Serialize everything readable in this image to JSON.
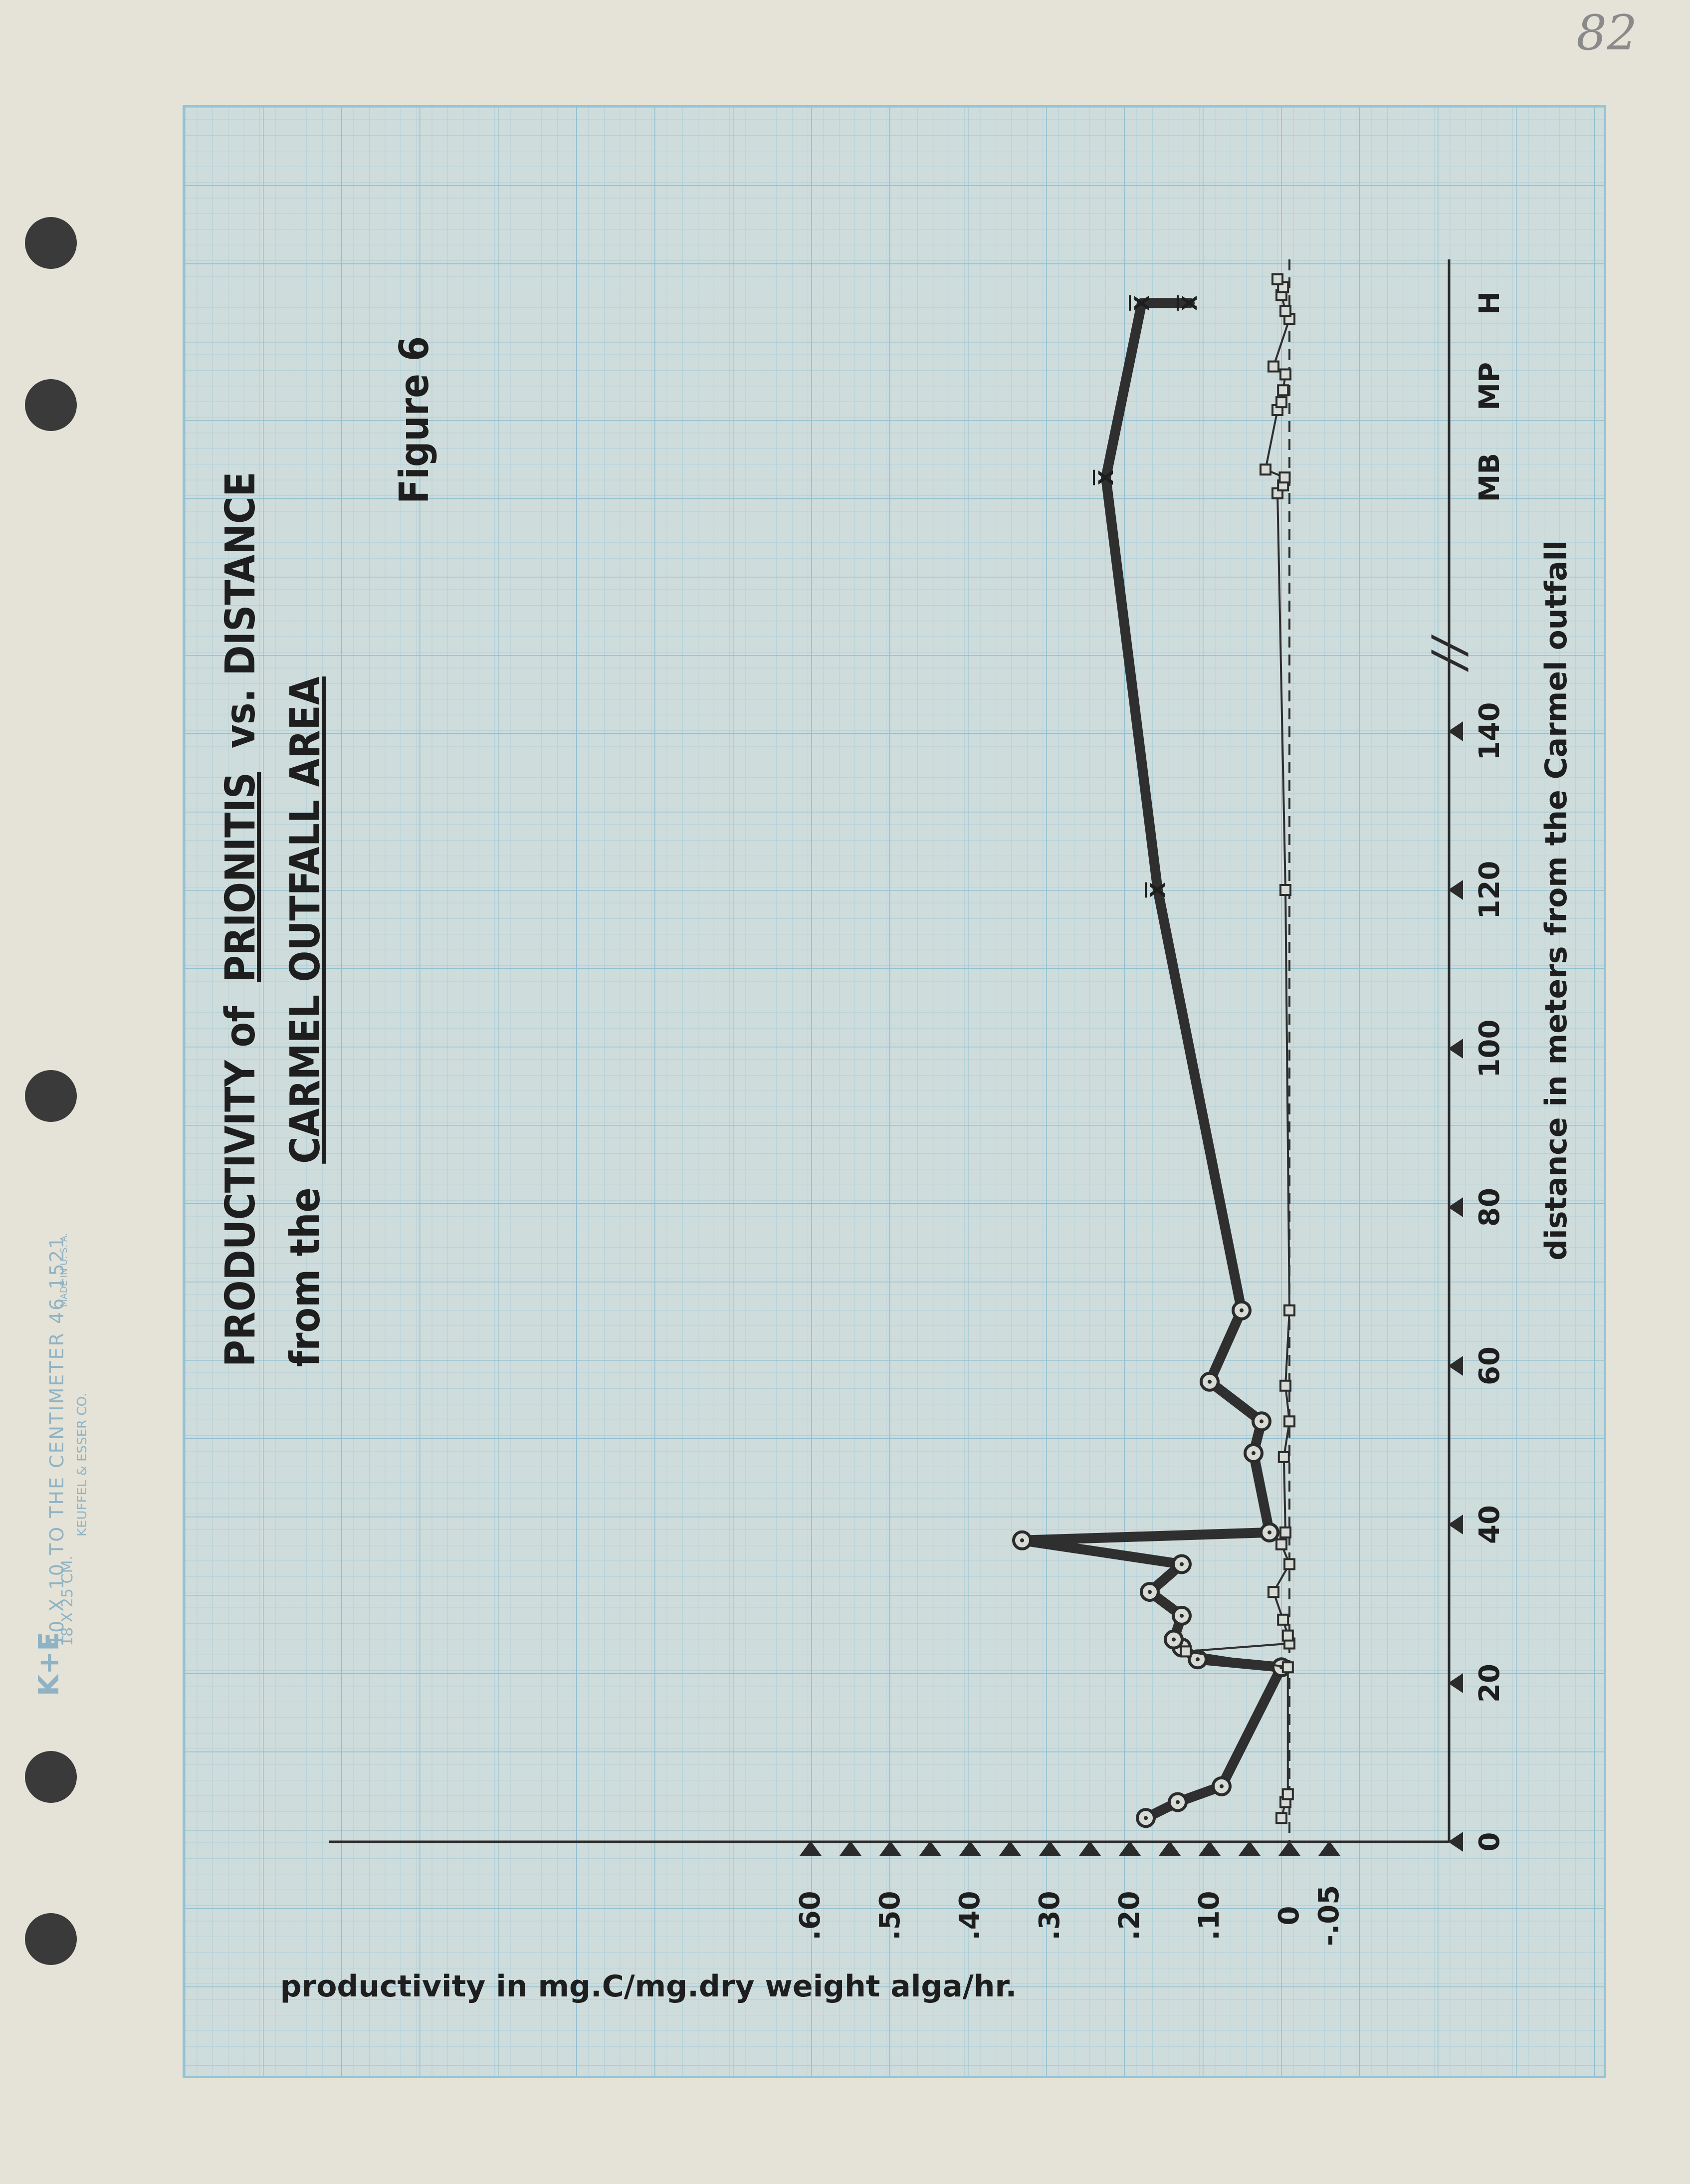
{
  "page": {
    "page_number": "82",
    "paper_imprint": {
      "logo": "K+E",
      "line1": "10 X 10 TO THE CENTIMETER 46 1521",
      "line2": "18 X 25 CM.",
      "line3": "MADE IN U. S. A.",
      "line4": "KEUFFEL & ESSER CO."
    },
    "colors": {
      "paper": "#e5e3d7",
      "grid_fill": "#cfdcdc",
      "grid_line": "#95c3d4",
      "ink": "#2b2b2b"
    }
  },
  "chart_data": {
    "type": "line",
    "orientation": "rotated 90 degrees counter-clockwise on the page",
    "title_line1_part1": "PRODUCTIVITY of",
    "title_line1_part2": "PRIONITIS",
    "title_line1_part3": "vs. DISTANCE",
    "title_line2_part1": "from the",
    "title_line2_part2": "CARMEL OUTFALL AREA",
    "figure_label": "Figure 6",
    "xlabel": "distance in meters from the Carmel outfall",
    "ylabel": "productivity in mg.C/mg.dry weight alga/hr.",
    "x_ticks": [
      "0",
      "20",
      "40",
      "60",
      "80",
      "100",
      "120",
      "140"
    ],
    "x_categorical_ticks": [
      "MB",
      "MP",
      "H"
    ],
    "y_tick_labels": [
      ".60",
      ".50",
      ".40",
      ".30",
      ".20",
      ".10",
      "0",
      "-.05"
    ],
    "y_tick_values": [
      0.6,
      0.5,
      0.4,
      0.3,
      0.2,
      0.1,
      0,
      -0.05
    ],
    "ylim": [
      -0.05,
      0.6
    ],
    "zero_reference_line": "dashed",
    "axis_break_symbol": "//",
    "x_numeric_range": [
      0,
      148
    ],
    "x_categorical_positions": {
      "MB": 172,
      "MP": 183.5,
      "H": 194
    },
    "series": [
      {
        "style": "thick line, circled points; x-bar marks are means",
        "points": [
          {
            "x": 3,
            "y": 0.18
          },
          {
            "x": 5,
            "y": 0.14
          },
          {
            "x": 7,
            "y": 0.085
          },
          {
            "x": 22,
            "y": 0.01
          },
          {
            "x": 23,
            "y": 0.115
          },
          {
            "x": 24.5,
            "y": 0.135
          },
          {
            "x": 25.5,
            "y": 0.145
          },
          {
            "x": 28.5,
            "y": 0.135
          },
          {
            "x": 31.5,
            "y": 0.175
          },
          {
            "x": 35,
            "y": 0.135
          },
          {
            "x": 38,
            "y": 0.335
          },
          {
            "x": 39,
            "y": 0.025
          },
          {
            "x": 49,
            "y": 0.045
          },
          {
            "x": 53,
            "y": 0.035
          },
          {
            "x": 58,
            "y": 0.1
          },
          {
            "x": 67,
            "y": 0.06
          },
          {
            "x": 120,
            "y": 0.165,
            "mean": true
          },
          {
            "x": "MB",
            "y": 0.23,
            "mean": true
          },
          {
            "x": "H",
            "y": 0.185,
            "mean": true
          },
          {
            "x": "H",
            "y": 0.125,
            "mean": true
          }
        ]
      },
      {
        "style": "thin line, small squares",
        "points": [
          {
            "x": 3,
            "y": 0.01
          },
          {
            "x": 5,
            "y": 0.005
          },
          {
            "x": 6,
            "y": 0.002
          },
          {
            "x": 22,
            "y": 0.002
          },
          {
            "x": 24,
            "y": 0.13
          },
          {
            "x": 25,
            "y": 0.0
          },
          {
            "x": 26,
            "y": 0.002
          },
          {
            "x": 28,
            "y": 0.008
          },
          {
            "x": 31.5,
            "y": 0.02
          },
          {
            "x": 35,
            "y": 0.0
          },
          {
            "x": 37.5,
            "y": 0.01
          },
          {
            "x": 39,
            "y": 0.005
          },
          {
            "x": 48.5,
            "y": 0.007
          },
          {
            "x": 53,
            "y": 0.0
          },
          {
            "x": 57.5,
            "y": 0.005
          },
          {
            "x": 67,
            "y": 0.0
          },
          {
            "x": 120,
            "y": 0.005
          },
          {
            "x": 170,
            "y": 0.015
          },
          {
            "x": 171,
            "y": 0.008
          },
          {
            "x": 172,
            "y": 0.006
          },
          {
            "x": 173,
            "y": 0.03
          },
          {
            "x": 180.5,
            "y": 0.015
          },
          {
            "x": 181.5,
            "y": 0.01
          },
          {
            "x": 183,
            "y": 0.008
          },
          {
            "x": 185,
            "y": 0.005
          },
          {
            "x": 186,
            "y": 0.02
          },
          {
            "x": 192,
            "y": 0.0
          },
          {
            "x": 193,
            "y": 0.005
          },
          {
            "x": 195,
            "y": 0.01
          },
          {
            "x": 196,
            "y": 0.008
          },
          {
            "x": 197,
            "y": 0.015
          }
        ]
      }
    ]
  }
}
